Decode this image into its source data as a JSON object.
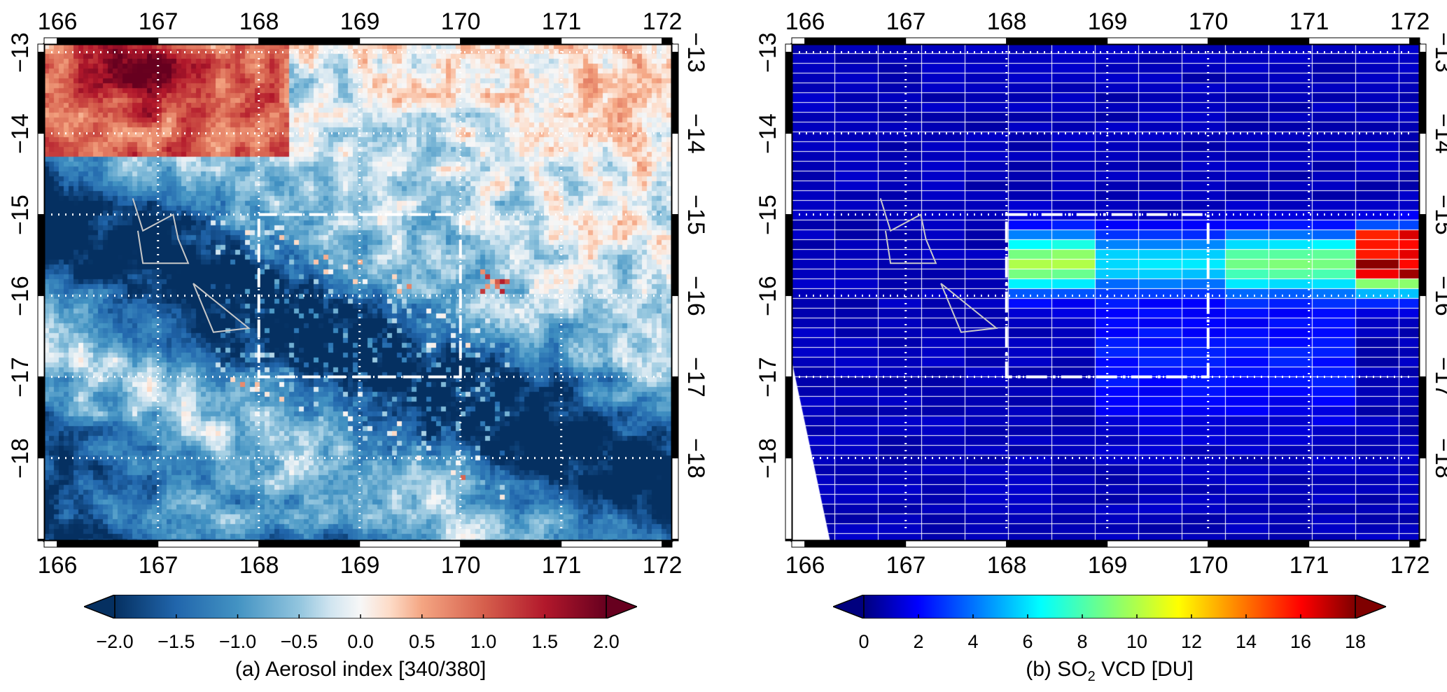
{
  "panels": [
    {
      "id": "a",
      "title": "(a) Aerosol index [340/380]",
      "colormap": "RdBu_r",
      "lon_ticks": [
        "166",
        "167",
        "168",
        "169",
        "170",
        "171",
        "172"
      ],
      "lat_ticks": [
        "−13",
        "−14",
        "−15",
        "−16",
        "−17",
        "−18"
      ],
      "colorbar_ticks": [
        "−2.0",
        "−1.5",
        "−1.0",
        "−0.5",
        "0.0",
        "0.5",
        "1.0",
        "1.5",
        "2.0"
      ],
      "colorbar_range": [
        -2.0,
        2.0
      ]
    },
    {
      "id": "b",
      "title_main": "(b) SO",
      "title_sub": "2",
      "title_rest": " VCD [DU]",
      "colormap": "jet",
      "lon_ticks": [
        "166",
        "167",
        "168",
        "169",
        "170",
        "171",
        "172"
      ],
      "lat_ticks": [
        "−13",
        "−14",
        "−15",
        "−16",
        "−17",
        "−18"
      ],
      "colorbar_ticks": [
        "0",
        "2",
        "4",
        "6",
        "8",
        "10",
        "12",
        "14",
        "16",
        "18"
      ],
      "colorbar_range": [
        0,
        18
      ]
    }
  ],
  "region_box": {
    "lon": [
      168,
      170
    ],
    "lat": [
      -17,
      -15
    ]
  },
  "colors": {
    "frame": "#000000",
    "grid": "#ffffff",
    "outline": "#c8c8c8"
  }
}
